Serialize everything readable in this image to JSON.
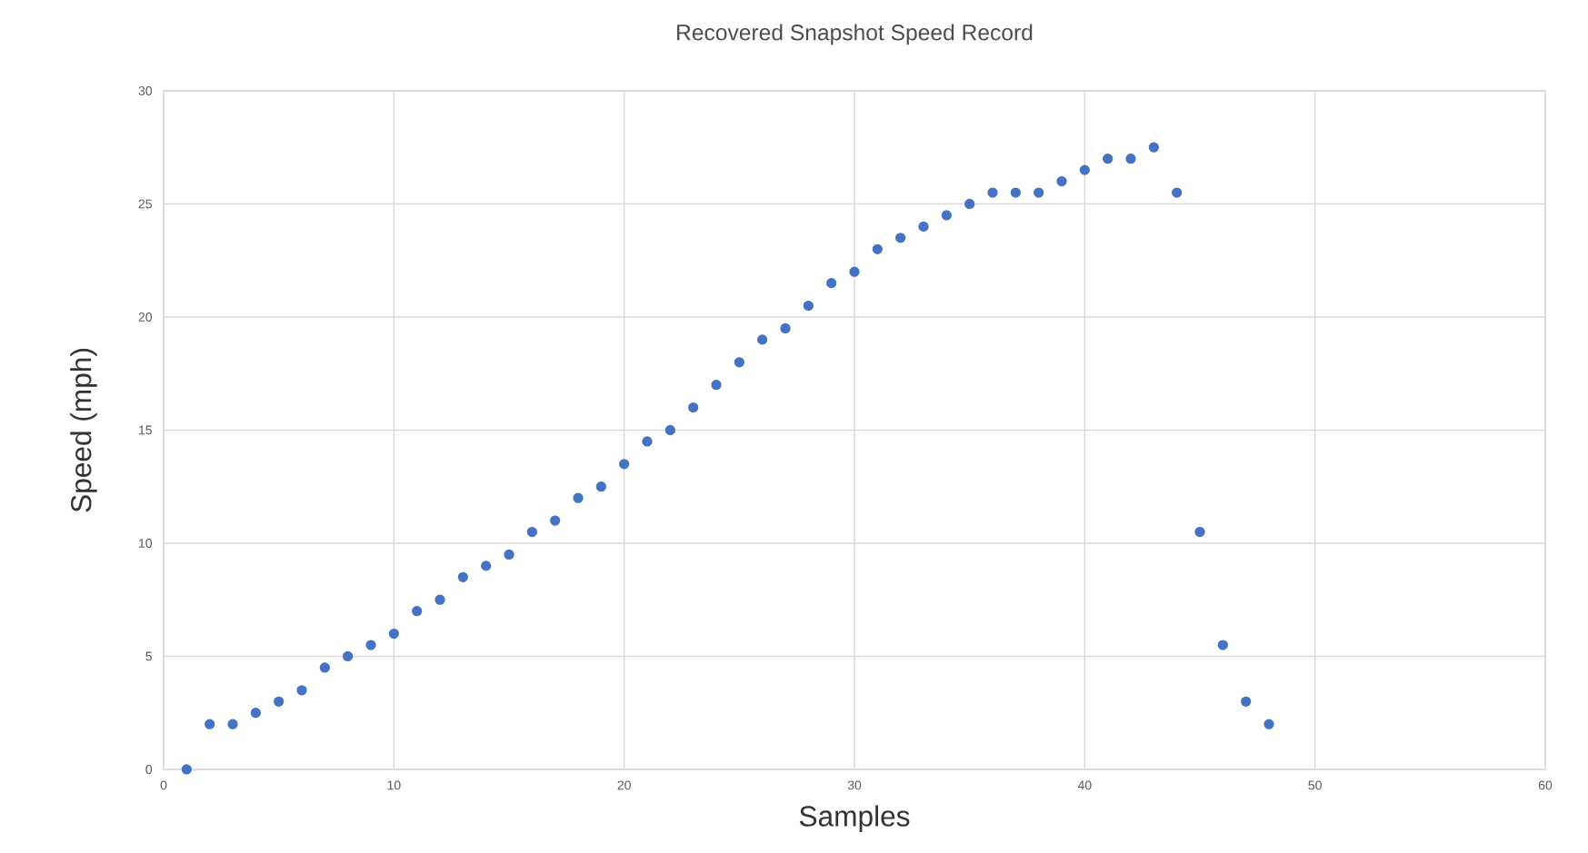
{
  "chart_data": {
    "type": "scatter",
    "title": "Recovered Snapshot Speed Record",
    "xlabel": "Samples",
    "ylabel": "Speed (mph)",
    "x": [
      1,
      2,
      3,
      4,
      5,
      6,
      7,
      8,
      9,
      10,
      11,
      12,
      13,
      14,
      15,
      16,
      17,
      18,
      19,
      20,
      21,
      22,
      23,
      24,
      25,
      26,
      27,
      28,
      29,
      30,
      31,
      32,
      33,
      34,
      35,
      36,
      37,
      38,
      39,
      40,
      41,
      42,
      43,
      44,
      45,
      46,
      47,
      48
    ],
    "values": [
      0,
      2,
      2,
      2.5,
      3,
      3.5,
      4.5,
      5,
      5.5,
      6,
      7,
      7.5,
      8.5,
      9,
      9.5,
      10.5,
      11,
      12,
      12.5,
      13.5,
      14.5,
      15,
      16,
      17,
      18,
      19,
      19.5,
      20.5,
      21.5,
      22,
      23,
      23.5,
      24,
      24.5,
      25,
      25.5,
      25.5,
      25.5,
      26,
      26.5,
      27,
      27,
      27.5,
      25.5,
      10.5,
      5.5,
      3,
      2
    ],
    "color": "#4472c4",
    "marker": "circle",
    "xlim": [
      0,
      60
    ],
    "ylim": [
      0,
      30
    ],
    "xticks": [
      0,
      10,
      20,
      30,
      40,
      50,
      60
    ],
    "yticks": [
      0,
      5,
      10,
      15,
      20,
      25,
      30
    ],
    "grid": true
  }
}
